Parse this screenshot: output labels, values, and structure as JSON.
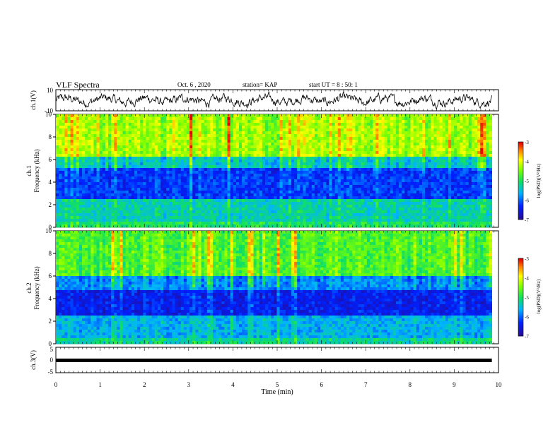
{
  "header": {
    "title": "VLF Spectra",
    "date": "Oct. 6 , 2020",
    "station": "station= KAP",
    "start": "start  UT =   8 : 50: 1"
  },
  "chart_data": [
    {
      "type": "line",
      "panel": "ch1-waveform",
      "ylabel": "ch.1(V)",
      "ylim": [
        -10,
        10
      ],
      "yticks": [
        "10",
        "-10"
      ],
      "xlim": [
        0,
        10
      ]
    },
    {
      "type": "heatmap",
      "panel": "ch1-spectrogram",
      "ylabel": "ch.1\nFrequency  (kHz)",
      "ylabel_lines": [
        "ch.1",
        "Frequency  (kHz)"
      ],
      "ylim": [
        0,
        10
      ],
      "yticks": [
        "0",
        "2",
        "4",
        "6",
        "8",
        "10"
      ],
      "xlim": [
        0,
        9.85
      ],
      "colorbar": {
        "label": "log(PSD)(V²/Hz)",
        "ticks": [
          "-3",
          "-4",
          "-5",
          "-6",
          "-7"
        ],
        "range": [
          -7,
          -3
        ]
      },
      "bands_khz": [
        {
          "from": 0.0,
          "to": 0.6,
          "level": -5.0
        },
        {
          "from": 0.6,
          "to": 2.4,
          "level": -5.3
        },
        {
          "from": 2.4,
          "to": 5.3,
          "level": -6.2
        },
        {
          "from": 5.3,
          "to": 6.2,
          "level": -5.4
        },
        {
          "from": 6.2,
          "to": 10.0,
          "level": -4.3
        }
      ]
    },
    {
      "type": "heatmap",
      "panel": "ch2-spectrogram",
      "ylabel": "ch.2\nFrequency  (kHz)",
      "ylabel_lines": [
        "ch.2",
        "Frequency  (kHz)"
      ],
      "ylim": [
        0,
        10
      ],
      "yticks": [
        "0",
        "2",
        "4",
        "6",
        "8",
        "10"
      ],
      "xlim": [
        0,
        9.85
      ],
      "colorbar": {
        "label": "log(PSD)(V²/Hz)",
        "ticks": [
          "-3",
          "-4",
          "-5",
          "-6",
          "-7"
        ],
        "range": [
          -7,
          -3
        ]
      },
      "bands_khz": [
        {
          "from": 0.0,
          "to": 0.6,
          "level": -5.2
        },
        {
          "from": 0.6,
          "to": 2.6,
          "level": -5.6
        },
        {
          "from": 2.6,
          "to": 4.8,
          "level": -6.4
        },
        {
          "from": 4.8,
          "to": 6.0,
          "level": -5.8
        },
        {
          "from": 6.0,
          "to": 10.0,
          "level": -4.7
        }
      ]
    },
    {
      "type": "line",
      "panel": "ch3-level",
      "ylabel": "ch.3(V)",
      "ylim": [
        -5,
        5
      ],
      "yticks": [
        "5",
        "0",
        "-5"
      ],
      "level_v": 0.2,
      "xlim": [
        0,
        9.85
      ]
    }
  ],
  "xaxis": {
    "label": "Time  (min)",
    "ticks": [
      "0",
      "1",
      "2",
      "3",
      "4",
      "5",
      "6",
      "7",
      "8",
      "9",
      "10"
    ],
    "xlim": [
      0,
      10
    ]
  }
}
